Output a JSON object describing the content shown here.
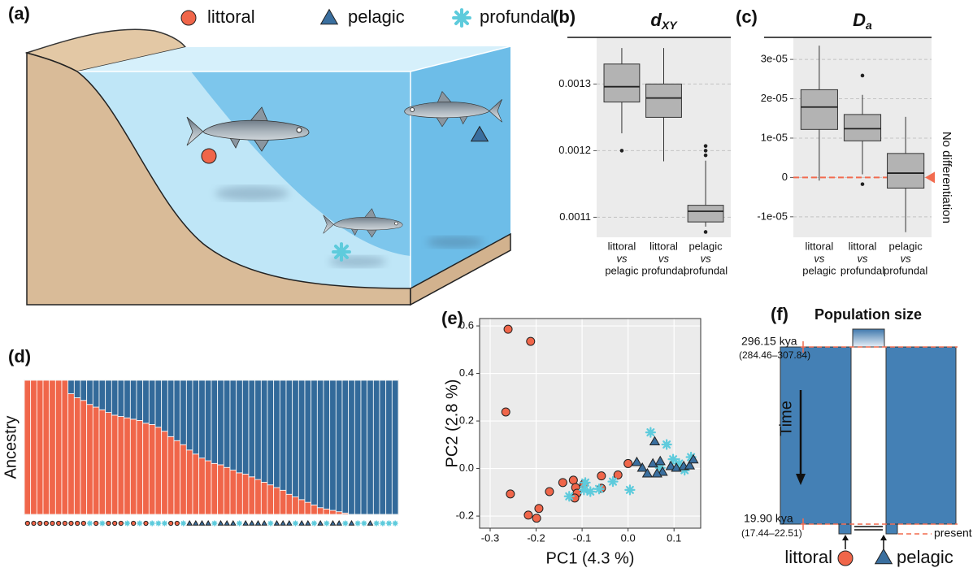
{
  "panel_labels": [
    "(a)",
    "(b)",
    "(c)",
    "(d)",
    "(e)",
    "(f)"
  ],
  "legend": [
    {
      "name": "littoral",
      "color": "#f0664a",
      "marker": "circle"
    },
    {
      "name": "pelagic",
      "color": "#3a6f9f",
      "marker": "triangle"
    },
    {
      "name": "profundal",
      "color": "#5ecbdc",
      "marker": "asterisk"
    }
  ],
  "chart_data": [
    {
      "type": "box",
      "title": "d",
      "title_sub": "XY",
      "categories": [
        [
          "littoral",
          "vs",
          "pelagic"
        ],
        [
          "littoral",
          "vs",
          "profundal"
        ],
        [
          "pelagic",
          "vs",
          "profundal"
        ]
      ],
      "boxes": [
        {
          "whisker_low": 0.001226,
          "q1": 0.001273,
          "median": 0.001296,
          "q3": 0.00133,
          "whisker_high": 0.001354,
          "outliers": [
            0.0012
          ]
        },
        {
          "whisker_low": 0.001184,
          "q1": 0.00125,
          "median": 0.001279,
          "q3": 0.0013,
          "whisker_high": 0.001354,
          "outliers": []
        },
        {
          "whisker_low": 0.001086,
          "q1": 0.001093,
          "median": 0.001109,
          "q3": 0.001118,
          "whisker_high": 0.001185,
          "outliers": [
            0.001207,
            0.0012,
            0.001193,
            0.001078
          ]
        }
      ],
      "ylim": [
        0.00107,
        0.00137
      ],
      "yticks": [
        0.0011,
        0.0012,
        0.0013
      ],
      "grid": true,
      "color": "#b3b3b3"
    },
    {
      "type": "box",
      "title": "D",
      "title_sub": "a",
      "categories": [
        [
          "littoral",
          "vs",
          "pelagic"
        ],
        [
          "littoral",
          "vs",
          "profundal"
        ],
        [
          "pelagic",
          "vs",
          "profundal"
        ]
      ],
      "boxes": [
        {
          "whisker_low": -8e-07,
          "q1": 1.22e-05,
          "median": 1.79e-05,
          "q3": 2.23e-05,
          "whisker_high": 3.35e-05,
          "outliers": []
        },
        {
          "whisker_low": 8e-07,
          "q1": 9.3e-06,
          "median": 1.24e-05,
          "q3": 1.6e-05,
          "whisker_high": 2.1e-05,
          "outliers": [
            2.59e-05,
            -1.7e-06
          ]
        },
        {
          "whisker_low": -1.39e-05,
          "q1": -2.7e-06,
          "median": 1.1e-06,
          "q3": 6.1e-06,
          "whisker_high": 1.54e-05,
          "outliers": []
        }
      ],
      "ylim": [
        -1.52e-05,
        3.56e-05
      ],
      "yticks": [
        {
          "value": -1e-05,
          "label": "-1e-05"
        },
        {
          "value": 0,
          "label": "0"
        },
        {
          "value": 1e-05,
          "label": "1e-05"
        },
        {
          "value": 2e-05,
          "label": "2e-05"
        },
        {
          "value": 3e-05,
          "label": "3e-05"
        }
      ],
      "grid": true,
      "color": "#b3b3b3",
      "reference": {
        "value": 0,
        "label": "No differentiation",
        "color": "#f26b4f"
      }
    },
    {
      "type": "stacked_bar",
      "ylabel": "Ancestry",
      "ylim": [
        0,
        1
      ],
      "series": [
        {
          "color": "#f0664a",
          "values": [
            1,
            1,
            1,
            1,
            1,
            1,
            1,
            0.9,
            0.87,
            0.85,
            0.82,
            0.8,
            0.78,
            0.76,
            0.74,
            0.73,
            0.72,
            0.71,
            0.7,
            0.68,
            0.67,
            0.65,
            0.62,
            0.58,
            0.55,
            0.52,
            0.48,
            0.45,
            0.42,
            0.4,
            0.38,
            0.37,
            0.35,
            0.33,
            0.31,
            0.3,
            0.28,
            0.26,
            0.24,
            0.22,
            0.2,
            0.18,
            0.15,
            0.13,
            0.11,
            0.09,
            0.07,
            0.05,
            0.04,
            0.03,
            0.02,
            0.01,
            0,
            0,
            0,
            0,
            0,
            0,
            0,
            0
          ]
        },
        {
          "color": "#336a9a",
          "values": [
            0,
            0,
            0,
            0,
            0,
            0,
            0,
            0.1,
            0.13,
            0.15,
            0.18,
            0.2,
            0.22,
            0.24,
            0.26,
            0.27,
            0.28,
            0.29,
            0.3,
            0.32,
            0.33,
            0.35,
            0.38,
            0.42,
            0.45,
            0.48,
            0.52,
            0.55,
            0.58,
            0.6,
            0.62,
            0.63,
            0.65,
            0.67,
            0.69,
            0.7,
            0.72,
            0.74,
            0.76,
            0.78,
            0.8,
            0.82,
            0.85,
            0.87,
            0.89,
            0.91,
            0.93,
            0.95,
            0.96,
            0.97,
            0.98,
            0.99,
            1,
            1,
            1,
            1,
            1,
            1,
            1,
            1
          ]
        }
      ],
      "groups": [
        0,
        0,
        0,
        0,
        0,
        0,
        0,
        0,
        0,
        0,
        2,
        0,
        2,
        0,
        0,
        0,
        2,
        0,
        2,
        0,
        2,
        2,
        2,
        0,
        0,
        2,
        1,
        1,
        1,
        1,
        2,
        1,
        1,
        1,
        2,
        1,
        1,
        1,
        1,
        2,
        1,
        1,
        1,
        2,
        1,
        1,
        2,
        1,
        2,
        1,
        1,
        2,
        1,
        2,
        2,
        1,
        2,
        2,
        2,
        2
      ]
    },
    {
      "type": "scatter",
      "xlabel": "PC1 (4.3 %)",
      "ylabel": "PC2 (2.8 %)",
      "xlim": [
        -0.323,
        0.158
      ],
      "ylim": [
        -0.251,
        0.631
      ],
      "xticks": [
        -0.3,
        -0.2,
        -0.1,
        {
          "value": 0,
          "label": "0.0"
        },
        0.1
      ],
      "yticks": [
        -0.2,
        {
          "value": 0,
          "label": "0.0"
        },
        0.2,
        0.4,
        0.6
      ],
      "grid": true,
      "series": [
        {
          "group": 0,
          "x": [
            -0.261,
            -0.212,
            -0.266,
            -0.256,
            -0.217,
            -0.199,
            -0.194,
            -0.171,
            -0.142,
            -0.119,
            -0.114,
            -0.111,
            -0.116,
            -0.096,
            -0.058,
            -0.058,
            -0.022,
            0.0
          ],
          "y": [
            0.586,
            0.535,
            0.238,
            -0.107,
            -0.196,
            -0.209,
            -0.168,
            -0.097,
            -0.059,
            -0.049,
            -0.08,
            -0.104,
            -0.124,
            -0.066,
            -0.031,
            -0.083,
            -0.027,
            0.021
          ]
        },
        {
          "group": 2,
          "x": [
            -0.128,
            -0.093,
            -0.096,
            -0.082,
            -0.063,
            -0.033,
            0.004,
            0.049,
            0.084,
            0.098,
            0.123,
            0.137,
            0.111,
            0.07
          ],
          "y": [
            -0.117,
            -0.059,
            -0.09,
            -0.097,
            -0.086,
            -0.055,
            -0.09,
            0.152,
            0.101,
            0.039,
            -0.007,
            0.048,
            0.021,
            0.003
          ]
        },
        {
          "group": 1,
          "x": [
            0.058,
            0.031,
            0.042,
            0.019,
            0.054,
            0.07,
            0.075,
            0.093,
            0.105,
            0.121,
            0.134,
            0.142,
            0.063
          ],
          "y": [
            0.114,
            0.003,
            -0.021,
            0.027,
            0.021,
            0.031,
            -0.014,
            0.01,
            0.003,
            0.01,
            0.013,
            0.038,
            -0.021
          ]
        }
      ]
    }
  ],
  "demography": {
    "title": "Population size",
    "ancient_time": "296.15 kya",
    "ancient_ci": "(284.46–307.84)",
    "split_time": "19.90 kya",
    "split_ci": "(17.44–22.51)",
    "axis_label": "Time",
    "present": "present"
  }
}
